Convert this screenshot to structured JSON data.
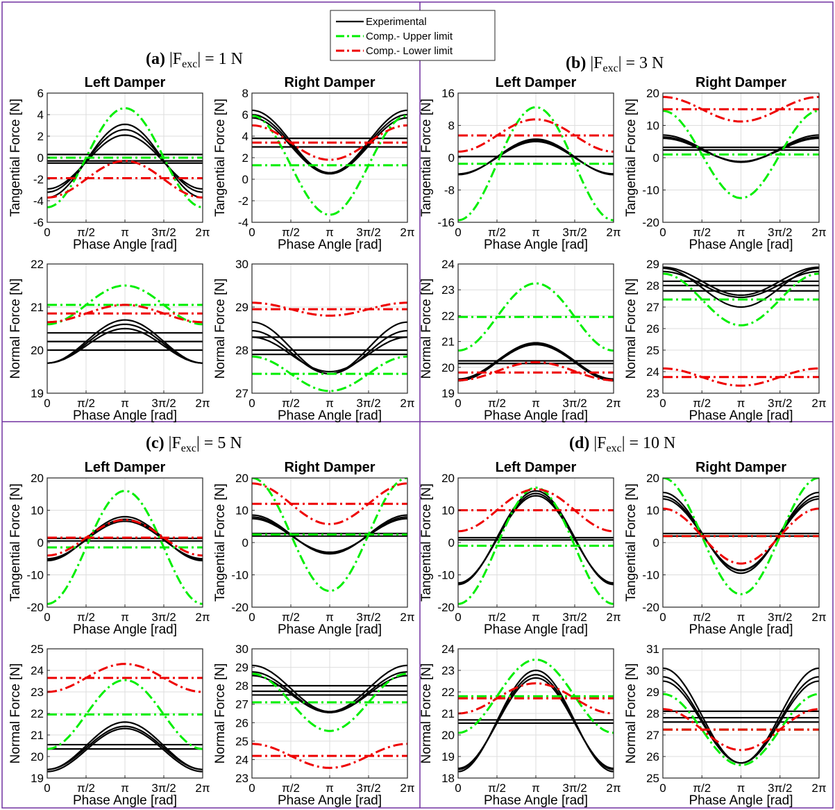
{
  "legend": {
    "placement": "top-center",
    "entries": [
      {
        "label": "Experimental",
        "color": "#000000",
        "style": "solid"
      },
      {
        "label": "Comp.- Upper limit",
        "color": "#00ee00",
        "style": "dashdot"
      },
      {
        "label": "Comp.- Lower limit",
        "color": "#ee0000",
        "style": "dashdot"
      }
    ]
  },
  "colors": {
    "experimental": "#000000",
    "upper": "#00ee00",
    "lower": "#ee0000",
    "frame": "#7030a0"
  },
  "xaxis": {
    "label": "Phase Angle [rad]",
    "ticks": [
      "0",
      "π/2",
      "π",
      "3π/2",
      "2π"
    ],
    "tick_values": [
      0,
      1.5708,
      3.1416,
      4.7124,
      6.2832
    ],
    "xlim": [
      0,
      6.2832
    ]
  },
  "panels": [
    {
      "label": "(a)",
      "eq_prefix": " |F",
      "eq_sub": "exc",
      "eq_suffix": "| = 1 N"
    },
    {
      "label": "(b)",
      "eq_prefix": " |F",
      "eq_sub": "exc",
      "eq_suffix": "| = 3 N"
    },
    {
      "label": "(c)",
      "eq_prefix": " |F",
      "eq_sub": "exc",
      "eq_suffix": "| = 5 N"
    },
    {
      "label": "(d)",
      "eq_prefix": " |F",
      "eq_sub": "exc",
      "eq_suffix": "| = 10 N"
    }
  ],
  "chart_data": [
    {
      "type": "line",
      "panel": 0,
      "title": "Left Damper",
      "xlabel": "Phase Angle [rad]",
      "ylabel": "Tangential Force [N]",
      "ylim": [
        -6,
        6
      ],
      "yticks": [
        -6,
        -4,
        -2,
        0,
        2,
        4,
        6
      ],
      "grid": true,
      "series": [
        {
          "kind": "exp",
          "offset": -0.3,
          "amp": 3.4
        },
        {
          "kind": "exp",
          "offset": -0.3,
          "amp": 2.9
        },
        {
          "kind": "exp",
          "offset": -0.4,
          "amp": 2.5
        },
        {
          "kind": "exp_line",
          "value": 0.3
        },
        {
          "kind": "exp_line",
          "value": -0.3
        },
        {
          "kind": "exp_line",
          "value": -0.5
        },
        {
          "kind": "upper",
          "offset": 0,
          "amp": 4.6
        },
        {
          "kind": "upper_line",
          "value": 0
        },
        {
          "kind": "lower",
          "offset": -2.0,
          "amp": 1.7
        },
        {
          "kind": "lower_line",
          "value": -1.9
        }
      ]
    },
    {
      "type": "line",
      "panel": 0,
      "title": "Right Damper",
      "xlabel": "Phase Angle [rad]",
      "ylabel": "Tangential Force [N]",
      "ylim": [
        -4,
        8
      ],
      "yticks": [
        -4,
        -2,
        0,
        2,
        4,
        6,
        8
      ],
      "grid": true,
      "series": [
        {
          "kind": "exp",
          "offset": 3.5,
          "amp": -2.9
        },
        {
          "kind": "exp",
          "offset": 3.3,
          "amp": -2.7
        },
        {
          "kind": "exp",
          "offset": 3.1,
          "amp": -2.6
        },
        {
          "kind": "exp_line",
          "value": 3.8
        },
        {
          "kind": "exp_line",
          "value": 3.0
        },
        {
          "kind": "upper",
          "offset": 1.3,
          "amp": -4.6
        },
        {
          "kind": "upper_line",
          "value": 1.3
        },
        {
          "kind": "lower",
          "offset": 3.4,
          "amp": -1.6
        },
        {
          "kind": "lower_line",
          "value": 3.4
        }
      ]
    },
    {
      "type": "line",
      "panel": 0,
      "title": "",
      "xlabel": "Phase Angle [rad]",
      "ylabel": "Normal Force [N]",
      "ylim": [
        19,
        22
      ],
      "yticks": [
        19,
        20,
        21,
        22
      ],
      "grid": true,
      "series": [
        {
          "kind": "exp",
          "offset": 20.2,
          "amp": 0.5
        },
        {
          "kind": "exp",
          "offset": 20.15,
          "amp": 0.45
        },
        {
          "kind": "exp",
          "offset": 20.1,
          "amp": 0.4
        },
        {
          "kind": "exp_line",
          "value": 20.4
        },
        {
          "kind": "exp_line",
          "value": 20.2
        },
        {
          "kind": "exp_line",
          "value": 20.0
        },
        {
          "kind": "upper",
          "offset": 21.05,
          "amp": 0.45
        },
        {
          "kind": "upper_line",
          "value": 21.05
        },
        {
          "kind": "lower",
          "offset": 20.85,
          "amp": 0.2
        },
        {
          "kind": "lower_line",
          "value": 20.85
        }
      ]
    },
    {
      "type": "line",
      "panel": 0,
      "title": "",
      "xlabel": "Phase Angle [rad]",
      "ylabel": "Normal Force [N]",
      "ylim": [
        27,
        30
      ],
      "yticks": [
        27,
        28,
        29,
        30
      ],
      "grid": true,
      "series": [
        {
          "kind": "exp",
          "offset": 28.05,
          "amp": -0.6
        },
        {
          "kind": "exp",
          "offset": 27.95,
          "amp": -0.5
        },
        {
          "kind": "exp",
          "offset": 27.9,
          "amp": -0.4
        },
        {
          "kind": "exp_line",
          "value": 28.3
        },
        {
          "kind": "exp_line",
          "value": 28.0
        },
        {
          "kind": "exp_line",
          "value": 27.9
        },
        {
          "kind": "upper",
          "offset": 27.45,
          "amp": -0.4
        },
        {
          "kind": "upper_line",
          "value": 27.45
        },
        {
          "kind": "lower",
          "offset": 28.95,
          "amp": -0.15
        },
        {
          "kind": "lower_line",
          "value": 28.95
        }
      ]
    },
    {
      "type": "line",
      "panel": 1,
      "title": "Left Damper",
      "xlabel": "Phase Angle [rad]",
      "ylabel": "Tangential Force [N]",
      "ylim": [
        -16,
        16
      ],
      "yticks": [
        -16,
        -8,
        0,
        8,
        16
      ],
      "grid": true,
      "series": [
        {
          "kind": "exp",
          "offset": 0.2,
          "amp": 4.4
        },
        {
          "kind": "exp",
          "offset": 0.1,
          "amp": 4.2
        },
        {
          "kind": "exp",
          "offset": 0,
          "amp": 4.0
        },
        {
          "kind": "exp_line",
          "value": 0.3
        },
        {
          "kind": "upper",
          "offset": -1.5,
          "amp": 14
        },
        {
          "kind": "upper_line",
          "value": -1.5
        },
        {
          "kind": "lower",
          "offset": 5.5,
          "amp": 4.0
        },
        {
          "kind": "lower_line",
          "value": 5.5
        }
      ]
    },
    {
      "type": "line",
      "panel": 1,
      "title": "Right Damper",
      "xlabel": "Phase Angle [rad]",
      "ylabel": "Tangential Force [N]",
      "ylim": [
        -20,
        20
      ],
      "yticks": [
        -20,
        -10,
        0,
        10,
        20
      ],
      "grid": true,
      "series": [
        {
          "kind": "exp",
          "offset": 2.8,
          "amp": -4.2
        },
        {
          "kind": "exp",
          "offset": 2.6,
          "amp": -3.8
        },
        {
          "kind": "exp",
          "offset": 2.4,
          "amp": -3.6
        },
        {
          "kind": "exp_line",
          "value": 3.2
        },
        {
          "kind": "exp_line",
          "value": 2.4
        },
        {
          "kind": "upper",
          "offset": 1,
          "amp": -13.5
        },
        {
          "kind": "upper_line",
          "value": 1
        },
        {
          "kind": "lower",
          "offset": 15,
          "amp": -3.8
        },
        {
          "kind": "lower_line",
          "value": 15
        }
      ]
    },
    {
      "type": "line",
      "panel": 1,
      "title": "",
      "xlabel": "Phase Angle [rad]",
      "ylabel": "Normal Force [N]",
      "ylim": [
        19,
        24
      ],
      "yticks": [
        19,
        20,
        21,
        22,
        23,
        24
      ],
      "grid": true,
      "series": [
        {
          "kind": "exp",
          "offset": 20.25,
          "amp": 0.7
        },
        {
          "kind": "exp",
          "offset": 20.2,
          "amp": 0.72
        },
        {
          "kind": "exp",
          "offset": 20.2,
          "amp": 0.68
        },
        {
          "kind": "exp_line",
          "value": 20.25
        },
        {
          "kind": "exp_line",
          "value": 20.15
        },
        {
          "kind": "upper",
          "offset": 21.95,
          "amp": 1.3
        },
        {
          "kind": "upper_line",
          "value": 21.95
        },
        {
          "kind": "lower",
          "offset": 19.85,
          "amp": 0.35
        },
        {
          "kind": "lower_line",
          "value": 19.8
        }
      ]
    },
    {
      "type": "line",
      "panel": 1,
      "title": "",
      "xlabel": "Phase Angle [rad]",
      "ylabel": "Normal Force [N]",
      "ylim": [
        23,
        29
      ],
      "yticks": [
        23,
        24,
        25,
        26,
        27,
        28,
        29
      ],
      "grid": true,
      "series": [
        {
          "kind": "exp",
          "offset": 28.2,
          "amp": -0.65
        },
        {
          "kind": "exp",
          "offset": 28.05,
          "amp": -0.6
        },
        {
          "kind": "exp",
          "offset": 27.9,
          "amp": -0.9
        },
        {
          "kind": "exp_line",
          "value": 28.2
        },
        {
          "kind": "exp_line",
          "value": 28.0
        },
        {
          "kind": "exp_line",
          "value": 27.75
        },
        {
          "kind": "upper",
          "offset": 27.35,
          "amp": -1.2
        },
        {
          "kind": "upper_line",
          "value": 27.35
        },
        {
          "kind": "lower",
          "offset": 23.75,
          "amp": -0.4
        },
        {
          "kind": "lower_line",
          "value": 23.75
        }
      ]
    },
    {
      "type": "line",
      "panel": 2,
      "title": "Left Damper",
      "xlabel": "Phase Angle [rad]",
      "ylabel": "Tangential Force [N]",
      "ylim": [
        -20,
        20
      ],
      "yticks": [
        -20,
        -10,
        0,
        10,
        20
      ],
      "grid": true,
      "series": [
        {
          "kind": "exp",
          "offset": 1.2,
          "amp": 6.8
        },
        {
          "kind": "exp",
          "offset": 1.0,
          "amp": 6.2
        },
        {
          "kind": "exp",
          "offset": 0.8,
          "amp": 5.8
        },
        {
          "kind": "exp_line",
          "value": 1.3
        },
        {
          "kind": "exp_line",
          "value": 0.5
        },
        {
          "kind": "upper",
          "offset": -1.5,
          "amp": 17.5
        },
        {
          "kind": "upper_line",
          "value": -1.5
        },
        {
          "kind": "lower",
          "offset": 1.5,
          "amp": 5.5
        },
        {
          "kind": "lower_line",
          "value": 1.5
        }
      ]
    },
    {
      "type": "line",
      "panel": 2,
      "title": "Right Damper",
      "xlabel": "Phase Angle [rad]",
      "ylabel": "Tangential Force [N]",
      "ylim": [
        -20,
        20
      ],
      "yticks": [
        -20,
        -10,
        0,
        10,
        20
      ],
      "grid": true,
      "series": [
        {
          "kind": "exp",
          "offset": 2.5,
          "amp": -6.0
        },
        {
          "kind": "exp",
          "offset": 2.3,
          "amp": -5.6
        },
        {
          "kind": "exp",
          "offset": 2.2,
          "amp": -5.2
        },
        {
          "kind": "exp_line",
          "value": 2.8
        },
        {
          "kind": "exp_line",
          "value": 2.0
        },
        {
          "kind": "upper",
          "offset": 2.5,
          "amp": -17.5
        },
        {
          "kind": "upper_line",
          "value": 2.5
        },
        {
          "kind": "lower",
          "offset": 12,
          "amp": -6.3
        },
        {
          "kind": "lower_line",
          "value": 12
        }
      ]
    },
    {
      "type": "line",
      "panel": 2,
      "title": "",
      "xlabel": "Phase Angle [rad]",
      "ylabel": "Normal Force [N]",
      "ylim": [
        19,
        25
      ],
      "yticks": [
        19,
        20,
        21,
        22,
        23,
        24,
        25
      ],
      "grid": true,
      "series": [
        {
          "kind": "exp",
          "offset": 20.5,
          "amp": 1.1
        },
        {
          "kind": "exp",
          "offset": 20.4,
          "amp": 1.0
        },
        {
          "kind": "exp",
          "offset": 20.3,
          "amp": 1.0
        },
        {
          "kind": "exp_line",
          "value": 20.55
        },
        {
          "kind": "exp_line",
          "value": 20.35
        },
        {
          "kind": "upper",
          "offset": 21.95,
          "amp": 1.6
        },
        {
          "kind": "upper_line",
          "value": 21.95
        },
        {
          "kind": "lower",
          "offset": 23.65,
          "amp": 0.65
        },
        {
          "kind": "lower_line",
          "value": 23.65
        }
      ]
    },
    {
      "type": "line",
      "panel": 2,
      "title": "",
      "xlabel": "Phase Angle [rad]",
      "ylabel": "Normal Force [N]",
      "ylim": [
        23,
        30
      ],
      "yticks": [
        23,
        24,
        25,
        26,
        27,
        28,
        29,
        30
      ],
      "grid": true,
      "series": [
        {
          "kind": "exp",
          "offset": 27.85,
          "amp": -1.25
        },
        {
          "kind": "exp",
          "offset": 27.65,
          "amp": -1.1
        },
        {
          "kind": "exp",
          "offset": 27.55,
          "amp": -1.0
        },
        {
          "kind": "exp_line",
          "value": 28.0
        },
        {
          "kind": "exp_line",
          "value": 27.7
        },
        {
          "kind": "exp_line",
          "value": 27.5
        },
        {
          "kind": "upper",
          "offset": 27.1,
          "amp": -1.55
        },
        {
          "kind": "upper_line",
          "value": 27.1
        },
        {
          "kind": "lower",
          "offset": 24.2,
          "amp": -0.65
        },
        {
          "kind": "lower_line",
          "value": 24.2
        }
      ]
    },
    {
      "type": "line",
      "panel": 3,
      "title": "Left Damper",
      "xlabel": "Phase Angle [rad]",
      "ylabel": "Tangential Force [N]",
      "ylim": [
        -20,
        20
      ],
      "yticks": [
        -20,
        -10,
        0,
        10,
        20
      ],
      "grid": true,
      "series": [
        {
          "kind": "exp",
          "offset": 1.5,
          "amp": 14.5
        },
        {
          "kind": "exp",
          "offset": 1.2,
          "amp": 14.0
        },
        {
          "kind": "exp",
          "offset": 1.0,
          "amp": 13.5
        },
        {
          "kind": "exp_line",
          "value": 1.5
        },
        {
          "kind": "exp_line",
          "value": 0.8
        },
        {
          "kind": "upper",
          "offset": -1,
          "amp": 18
        },
        {
          "kind": "upper_line",
          "value": -1
        },
        {
          "kind": "lower",
          "offset": 10,
          "amp": 6.5
        },
        {
          "kind": "lower_line",
          "value": 10
        }
      ]
    },
    {
      "type": "line",
      "panel": 3,
      "title": "Right Damper",
      "xlabel": "Phase Angle [rad]",
      "ylabel": "Tangential Force [N]",
      "ylim": [
        -20,
        20
      ],
      "yticks": [
        -20,
        -10,
        0,
        10,
        20
      ],
      "grid": true,
      "series": [
        {
          "kind": "exp",
          "offset": 3,
          "amp": -12.5
        },
        {
          "kind": "exp",
          "offset": 2.8,
          "amp": -11.5
        },
        {
          "kind": "exp",
          "offset": 2.5,
          "amp": -11
        },
        {
          "kind": "exp_line",
          "value": 2.8
        },
        {
          "kind": "exp_line",
          "value": 2.0
        },
        {
          "kind": "upper",
          "offset": 2,
          "amp": -18
        },
        {
          "kind": "upper_line",
          "value": 2
        },
        {
          "kind": "lower",
          "offset": 2,
          "amp": -8.5
        },
        {
          "kind": "lower_line",
          "value": 2
        }
      ]
    },
    {
      "type": "line",
      "panel": 3,
      "title": "",
      "xlabel": "Phase Angle [rad]",
      "ylabel": "Normal Force [N]",
      "ylim": [
        18,
        24
      ],
      "yticks": [
        18,
        19,
        20,
        21,
        22,
        23,
        24
      ],
      "grid": true,
      "series": [
        {
          "kind": "exp",
          "offset": 20.65,
          "amp": 2.35
        },
        {
          "kind": "exp",
          "offset": 20.6,
          "amp": 2.2
        },
        {
          "kind": "exp",
          "offset": 20.55,
          "amp": 2.1
        },
        {
          "kind": "exp_line",
          "value": 20.7
        },
        {
          "kind": "exp_line",
          "value": 20.55
        },
        {
          "kind": "upper",
          "offset": 21.8,
          "amp": 1.7
        },
        {
          "kind": "upper_line",
          "value": 21.8
        },
        {
          "kind": "lower",
          "offset": 21.7,
          "amp": 0.7
        },
        {
          "kind": "lower_line",
          "value": 21.7
        }
      ]
    },
    {
      "type": "line",
      "panel": 3,
      "title": "",
      "xlabel": "Phase Angle [rad]",
      "ylabel": "Normal Force [N]",
      "ylim": [
        25,
        31
      ],
      "yticks": [
        25,
        26,
        27,
        28,
        29,
        30,
        31
      ],
      "grid": true,
      "series": [
        {
          "kind": "exp",
          "offset": 27.9,
          "amp": -2.2
        },
        {
          "kind": "exp",
          "offset": 27.7,
          "amp": -2.0
        },
        {
          "kind": "exp",
          "offset": 27.6,
          "amp": -1.9
        },
        {
          "kind": "exp_line",
          "value": 28.1
        },
        {
          "kind": "exp_line",
          "value": 27.8
        },
        {
          "kind": "exp_line",
          "value": 27.6
        },
        {
          "kind": "upper",
          "offset": 27.25,
          "amp": -1.65
        },
        {
          "kind": "upper_line",
          "value": 27.25
        },
        {
          "kind": "lower",
          "offset": 27.25,
          "amp": -0.95
        },
        {
          "kind": "lower_line",
          "value": 27.25
        }
      ]
    }
  ]
}
